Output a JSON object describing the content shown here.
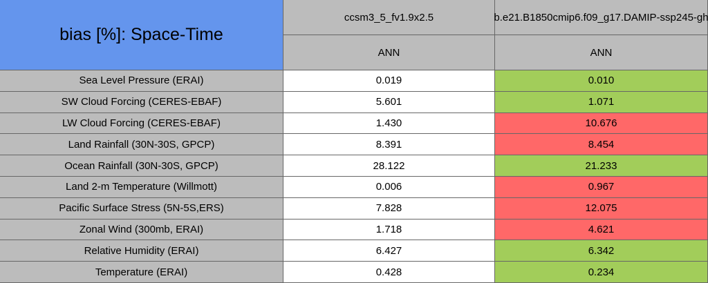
{
  "header": {
    "title": "bias [%]: Space-Time",
    "cases": [
      "ccsm3_5_fv1.9x2.5",
      "b.e21.B1850cmip6.f09_g17.DAMIP-ssp245-gh"
    ],
    "seasons": [
      "ANN",
      "ANN"
    ]
  },
  "table": {
    "rows": [
      [
        "Sea Level Pressure (ERAI)",
        "0.019",
        "0.010"
      ],
      [
        "SW Cloud Forcing (CERES-EBAF)",
        "5.601",
        "1.071"
      ],
      [
        "LW Cloud Forcing (CERES-EBAF)",
        "1.430",
        "10.676"
      ],
      [
        "Land Rainfall (30N-30S, GPCP)",
        "8.391",
        "8.454"
      ],
      [
        "Ocean Rainfall (30N-30S, GPCP)",
        "28.122",
        "21.233"
      ],
      [
        "Land 2-m Temperature (Willmott)",
        "0.006",
        "0.967"
      ],
      [
        "Pacific Surface Stress (5N-5S,ERS)",
        "7.828",
        "12.075"
      ],
      [
        "Zonal Wind (300mb, ERAI)",
        "1.718",
        "4.621"
      ],
      [
        "Relative Humidity (ERAI)",
        "6.427",
        "6.342"
      ],
      [
        "Temperature (ERAI)",
        "0.428",
        "0.234"
      ]
    ],
    "cell_colors": [
      "#a2cd5a",
      "#a2cd5a",
      "#ff6868",
      "#ff6868",
      "#a2cd5a",
      "#ff6868",
      "#ff6868",
      "#ff6868",
      "#a2cd5a",
      "#a2cd5a"
    ]
  }
}
